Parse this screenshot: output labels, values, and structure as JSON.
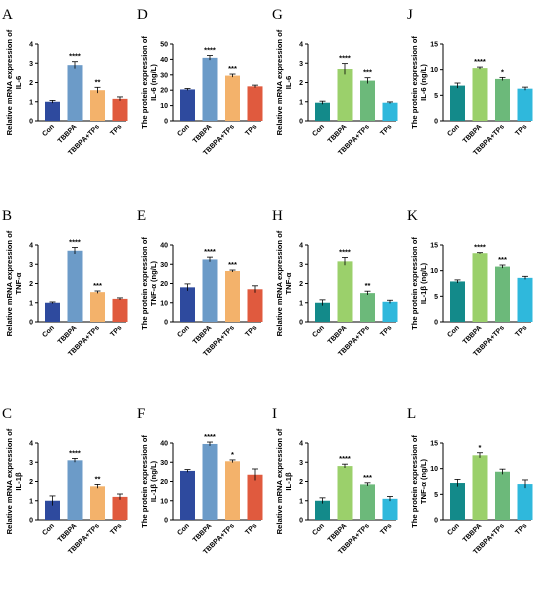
{
  "chart_data": [
    {
      "panel": "A",
      "type": "bar",
      "ylabel": [
        "Relative mRNA expression of",
        "IL-6"
      ],
      "ylim": [
        0,
        4
      ],
      "yticks": [
        0,
        1,
        2,
        3,
        4
      ],
      "categories": [
        "Con",
        "TBBPA",
        "TBBPA+TPs",
        "TPs"
      ],
      "values": [
        1.0,
        2.9,
        1.6,
        1.15
      ],
      "errors": [
        0.07,
        0.18,
        0.15,
        0.1
      ],
      "colors": [
        "#2e4a9e",
        "#6c9bc8",
        "#f3b26b",
        "#e05a3e"
      ],
      "significance": [
        "",
        "****",
        "**",
        ""
      ]
    },
    {
      "panel": "D",
      "type": "bar",
      "ylabel": [
        "The protein expression of",
        "IL-6 (ng/L)"
      ],
      "ylim": [
        0,
        50
      ],
      "yticks": [
        0,
        10,
        20,
        30,
        40,
        50
      ],
      "categories": [
        "Con",
        "TBBPA",
        "TBBPA+TPs",
        "TPs"
      ],
      "values": [
        20.5,
        41,
        29.5,
        22.5
      ],
      "errors": [
        0.6,
        1.5,
        1.0,
        0.8
      ],
      "colors": [
        "#2e4a9e",
        "#6c9bc8",
        "#f3b26b",
        "#e05a3e"
      ],
      "significance": [
        "",
        "****",
        "***",
        ""
      ]
    },
    {
      "panel": "G",
      "type": "bar",
      "ylabel": [
        "Relative mRNA expression of",
        "IL-6"
      ],
      "ylim": [
        0,
        4
      ],
      "yticks": [
        0,
        1,
        2,
        3,
        4
      ],
      "categories": [
        "Con",
        "TBBPA",
        "TBBPA+TPs",
        "TPs"
      ],
      "values": [
        0.95,
        2.7,
        2.1,
        0.95
      ],
      "errors": [
        0.08,
        0.28,
        0.15,
        0.04
      ],
      "colors": [
        "#138a8a",
        "#9bd06b",
        "#6cb97a",
        "#2fb8dc"
      ],
      "significance": [
        "",
        "****",
        "***",
        ""
      ]
    },
    {
      "panel": "J",
      "type": "bar",
      "ylabel": [
        "The protein expression of",
        "IL-6 (ng/L)"
      ],
      "ylim": [
        0,
        15
      ],
      "yticks": [
        0,
        5,
        10,
        15
      ],
      "categories": [
        "Con",
        "TBBPA",
        "TBBPA+TPs",
        "TPs"
      ],
      "values": [
        6.9,
        10.3,
        8.2,
        6.3
      ],
      "errors": [
        0.5,
        0.2,
        0.3,
        0.3
      ],
      "colors": [
        "#138a8a",
        "#9bd06b",
        "#6cb97a",
        "#2fb8dc"
      ],
      "significance": [
        "",
        "****",
        "*",
        ""
      ]
    },
    {
      "panel": "B",
      "type": "bar",
      "ylabel": [
        "Relative mRNA expression of",
        "TNF-α"
      ],
      "ylim": [
        0,
        4
      ],
      "yticks": [
        0,
        1,
        2,
        3,
        4
      ],
      "categories": [
        "Con",
        "TBBPA",
        "TBBPA+TPs",
        "TPs"
      ],
      "values": [
        1.0,
        3.7,
        1.55,
        1.2
      ],
      "errors": [
        0.04,
        0.17,
        0.06,
        0.05
      ],
      "colors": [
        "#2e4a9e",
        "#6c9bc8",
        "#f3b26b",
        "#e05a3e"
      ],
      "significance": [
        "",
        "****",
        "***",
        ""
      ]
    },
    {
      "panel": "E",
      "type": "bar",
      "ylabel": [
        "The protein expression of",
        "TNF-α (ng/L)"
      ],
      "ylim": [
        0,
        40
      ],
      "yticks": [
        0,
        10,
        20,
        30,
        40
      ],
      "categories": [
        "Con",
        "TBBPA",
        "TBBPA+TPs",
        "TPs"
      ],
      "values": [
        18,
        32.5,
        26.5,
        17
      ],
      "errors": [
        1.8,
        1.2,
        0.5,
        1.8
      ],
      "colors": [
        "#2e4a9e",
        "#6c9bc8",
        "#f3b26b",
        "#e05a3e"
      ],
      "significance": [
        "",
        "****",
        "***",
        ""
      ]
    },
    {
      "panel": "H",
      "type": "bar",
      "ylabel": [
        "Relative mRNA expression of",
        "TNF-α"
      ],
      "ylim": [
        0,
        4
      ],
      "yticks": [
        0,
        1,
        2,
        3,
        4
      ],
      "categories": [
        "Con",
        "TBBPA",
        "TBBPA+TPs",
        "TPs"
      ],
      "values": [
        1.0,
        3.15,
        1.5,
        1.05
      ],
      "errors": [
        0.15,
        0.2,
        0.1,
        0.08
      ],
      "colors": [
        "#138a8a",
        "#9bd06b",
        "#6cb97a",
        "#2fb8dc"
      ],
      "significance": [
        "",
        "****",
        "**",
        ""
      ]
    },
    {
      "panel": "K",
      "type": "bar",
      "ylabel": [
        "The protein expression of",
        "IL-1β (ng/L)"
      ],
      "ylim": [
        0,
        15
      ],
      "yticks": [
        0,
        5,
        10,
        15
      ],
      "categories": [
        "Con",
        "TBBPA",
        "TBBPA+TPs",
        "TPs"
      ],
      "values": [
        7.9,
        13.4,
        10.8,
        8.6
      ],
      "errors": [
        0.3,
        0.1,
        0.3,
        0.3
      ],
      "colors": [
        "#138a8a",
        "#9bd06b",
        "#6cb97a",
        "#2fb8dc"
      ],
      "significance": [
        "",
        "****",
        "***",
        ""
      ]
    },
    {
      "panel": "C",
      "type": "bar",
      "ylabel": [
        "Relative mRNA expression of",
        "IL-1β"
      ],
      "ylim": [
        0,
        4
      ],
      "yticks": [
        0,
        1,
        2,
        3,
        4
      ],
      "categories": [
        "Con",
        "TBBPA",
        "TBBPA+TPs",
        "TPs"
      ],
      "values": [
        1.0,
        3.1,
        1.75,
        1.2
      ],
      "errors": [
        0.25,
        0.1,
        0.1,
        0.15
      ],
      "colors": [
        "#2e4a9e",
        "#6c9bc8",
        "#f3b26b",
        "#e05a3e"
      ],
      "significance": [
        "",
        "****",
        "**",
        ""
      ]
    },
    {
      "panel": "F",
      "type": "bar",
      "ylabel": [
        "The protein expression of",
        "IL-1β (ng/L)"
      ],
      "ylim": [
        0,
        40
      ],
      "yticks": [
        0,
        10,
        20,
        30,
        40
      ],
      "categories": [
        "Con",
        "TBBPA",
        "TBBPA+TPs",
        "TPs"
      ],
      "values": [
        25.5,
        39.5,
        30.5,
        23.5
      ],
      "errors": [
        0.7,
        1.0,
        0.7,
        3.0
      ],
      "colors": [
        "#2e4a9e",
        "#6c9bc8",
        "#f3b26b",
        "#e05a3e"
      ],
      "significance": [
        "",
        "****",
        "*",
        ""
      ]
    },
    {
      "panel": "I",
      "type": "bar",
      "ylabel": [
        "Relative mRNA expression of",
        "IL-1β"
      ],
      "ylim": [
        0,
        4
      ],
      "yticks": [
        0,
        1,
        2,
        3,
        4
      ],
      "categories": [
        "Con",
        "TBBPA",
        "TBBPA+TPs",
        "TPs"
      ],
      "values": [
        1.0,
        2.8,
        1.85,
        1.1
      ],
      "errors": [
        0.15,
        0.1,
        0.08,
        0.12
      ],
      "colors": [
        "#138a8a",
        "#9bd06b",
        "#6cb97a",
        "#2fb8dc"
      ],
      "significance": [
        "",
        "****",
        "***",
        ""
      ]
    },
    {
      "panel": "L",
      "type": "bar",
      "ylabel": [
        "The protein expression of",
        "TNF-α (ng/L)"
      ],
      "ylim": [
        0,
        15
      ],
      "yticks": [
        0,
        5,
        10,
        15
      ],
      "categories": [
        "Con",
        "TBBPA",
        "TBBPA+TPs",
        "TPs"
      ],
      "values": [
        7.2,
        12.6,
        9.4,
        7.0
      ],
      "errors": [
        0.7,
        0.5,
        0.5,
        0.8
      ],
      "colors": [
        "#138a8a",
        "#9bd06b",
        "#6cb97a",
        "#2fb8dc"
      ],
      "significance": [
        "*",
        "",
        "",
        ""
      ]
    }
  ]
}
